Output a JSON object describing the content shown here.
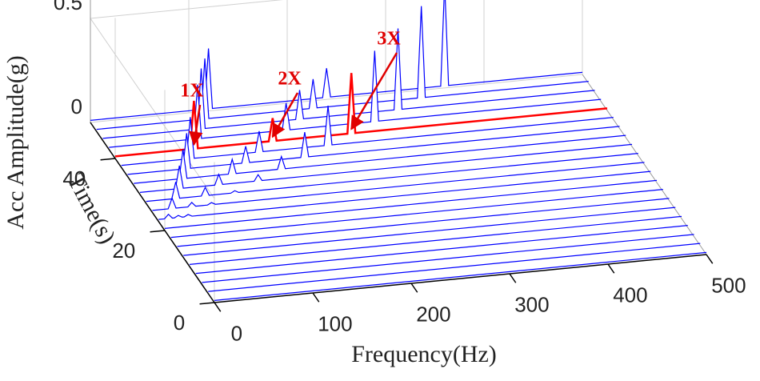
{
  "chart_data": {
    "type": "waterfall",
    "xlabel": "Frequency(Hz)",
    "ylabel": "Time(s)",
    "zlabel": "Acc Amplitude(g)",
    "xlim": [
      0,
      500
    ],
    "ylim": [
      0,
      50
    ],
    "zlim": [
      0,
      0.5
    ],
    "xticks": [
      0,
      100,
      200,
      300,
      400,
      500
    ],
    "yticks": [
      0,
      20,
      40
    ],
    "zticks": [
      0,
      0.5
    ],
    "grid": true,
    "annotations": [
      "1X",
      "2X",
      "3X"
    ],
    "series": [
      {
        "t": 0,
        "color": "#0000ff",
        "x": [
          0,
          500
        ],
        "values": [
          0.01,
          0.01
        ]
      },
      {
        "t": 2.5,
        "color": "#0000ff",
        "x": [
          0,
          500
        ],
        "values": [
          0.01,
          0.01
        ]
      },
      {
        "t": 5,
        "color": "#0000ff",
        "x": [
          0,
          500
        ],
        "values": [
          0.01,
          0.01
        ]
      },
      {
        "t": 7.5,
        "color": "#0000ff",
        "x": [
          0,
          500
        ],
        "values": [
          0.01,
          0.01
        ]
      },
      {
        "t": 10,
        "color": "#0000ff",
        "x": [
          0,
          500
        ],
        "values": [
          0.01,
          0.01
        ]
      },
      {
        "t": 12.5,
        "color": "#0000ff",
        "x": [
          0,
          500
        ],
        "values": [
          0.01,
          0.01
        ]
      },
      {
        "t": 15,
        "color": "#0000ff",
        "x": [
          0,
          500
        ],
        "values": [
          0.01,
          0.01
        ]
      },
      {
        "t": 17.5,
        "color": "#0000ff",
        "x": [
          0,
          500
        ],
        "values": [
          0.01,
          0.01
        ]
      },
      {
        "t": 20,
        "color": "#0000ff",
        "x": [
          0,
          500
        ],
        "values": [
          0.01,
          0.01
        ]
      },
      {
        "t": 22.5,
        "color": "#0000ff",
        "x": [
          0,
          6,
          10,
          14,
          16,
          20,
          24,
          26,
          30,
          34,
          500
        ],
        "values": [
          0.01,
          0.01,
          0.03,
          0.01,
          0.01,
          0.02,
          0.01,
          0.01,
          0.02,
          0.01,
          0.01
        ]
      },
      {
        "t": 25,
        "color": "#0000ff",
        "x": [
          0,
          16,
          20,
          24,
          36,
          40,
          44,
          56,
          60,
          64,
          500
        ],
        "values": [
          0.01,
          0.01,
          0.06,
          0.01,
          0.01,
          0.03,
          0.01,
          0.01,
          0.02,
          0.01,
          0.01
        ]
      },
      {
        "t": 27.5,
        "color": "#0000ff",
        "x": [
          0,
          26,
          30,
          34,
          56,
          60,
          64,
          86,
          90,
          94,
          500
        ],
        "values": [
          0.01,
          0.01,
          0.09,
          0.01,
          0.01,
          0.05,
          0.01,
          0.01,
          0.02,
          0.01,
          0.01
        ]
      },
      {
        "t": 30,
        "color": "#0000ff",
        "x": [
          0,
          36,
          40,
          44,
          76,
          80,
          84,
          116,
          120,
          124,
          500
        ],
        "values": [
          0.01,
          0.01,
          0.12,
          0.01,
          0.01,
          0.06,
          0.01,
          0.01,
          0.04,
          0.01,
          0.01
        ]
      },
      {
        "t": 32.5,
        "color": "#0000ff",
        "x": [
          0,
          46,
          50,
          54,
          96,
          100,
          104,
          146,
          150,
          154,
          500
        ],
        "values": [
          0.01,
          0.01,
          0.15,
          0.01,
          0.01,
          0.08,
          0.01,
          0.01,
          0.07,
          0.01,
          0.01
        ]
      },
      {
        "t": 35,
        "color": "#0000ff",
        "x": [
          0,
          56,
          60,
          64,
          116,
          120,
          124,
          176,
          180,
          184,
          500
        ],
        "values": [
          0.01,
          0.01,
          0.18,
          0.01,
          0.01,
          0.09,
          0.01,
          0.01,
          0.13,
          0.01,
          0.01
        ]
      },
      {
        "t": 37.5,
        "color": "#0000ff",
        "x": [
          0,
          66,
          70,
          74,
          136,
          140,
          144,
          206,
          210,
          214,
          500
        ],
        "values": [
          0.01,
          0.01,
          0.21,
          0.01,
          0.01,
          0.11,
          0.01,
          0.01,
          0.2,
          0.01,
          0.01
        ]
      },
      {
        "t": 40,
        "color": "#ff0000",
        "x": [
          0,
          76,
          80,
          84,
          156,
          160,
          164,
          236,
          240,
          244,
          500
        ],
        "values": [
          0.01,
          0.01,
          0.24,
          0.01,
          0.01,
          0.12,
          0.01,
          0.01,
          0.3,
          0.01,
          0.01
        ]
      },
      {
        "t": 42.5,
        "color": "#0000ff",
        "x": [
          0,
          86,
          90,
          94,
          176,
          180,
          184,
          266,
          270,
          274,
          500
        ],
        "values": [
          0.01,
          0.01,
          0.27,
          0.01,
          0.01,
          0.14,
          0.01,
          0.01,
          0.35,
          0.01,
          0.01
        ]
      },
      {
        "t": 45,
        "color": "#0000ff",
        "x": [
          0,
          96,
          100,
          104,
          196,
          200,
          204,
          296,
          300,
          304,
          500
        ],
        "values": [
          0.01,
          0.01,
          0.3,
          0.01,
          0.01,
          0.15,
          0.01,
          0.01,
          0.4,
          0.01,
          0.01
        ]
      },
      {
        "t": 47.5,
        "color": "#0000ff",
        "x": [
          0,
          106,
          110,
          114,
          216,
          220,
          224,
          326,
          330,
          334,
          500
        ],
        "values": [
          0.01,
          0.01,
          0.3,
          0.01,
          0.01,
          0.15,
          0.01,
          0.01,
          0.45,
          0.01,
          0.01
        ]
      },
      {
        "t": 50,
        "color": "#0000ff",
        "x": [
          0,
          116,
          120,
          124,
          236,
          240,
          244,
          356,
          360,
          364,
          500
        ],
        "values": [
          0.01,
          0.01,
          0.3,
          0.01,
          0.01,
          0.15,
          0.01,
          0.01,
          0.5,
          0.01,
          0.01
        ]
      }
    ]
  }
}
